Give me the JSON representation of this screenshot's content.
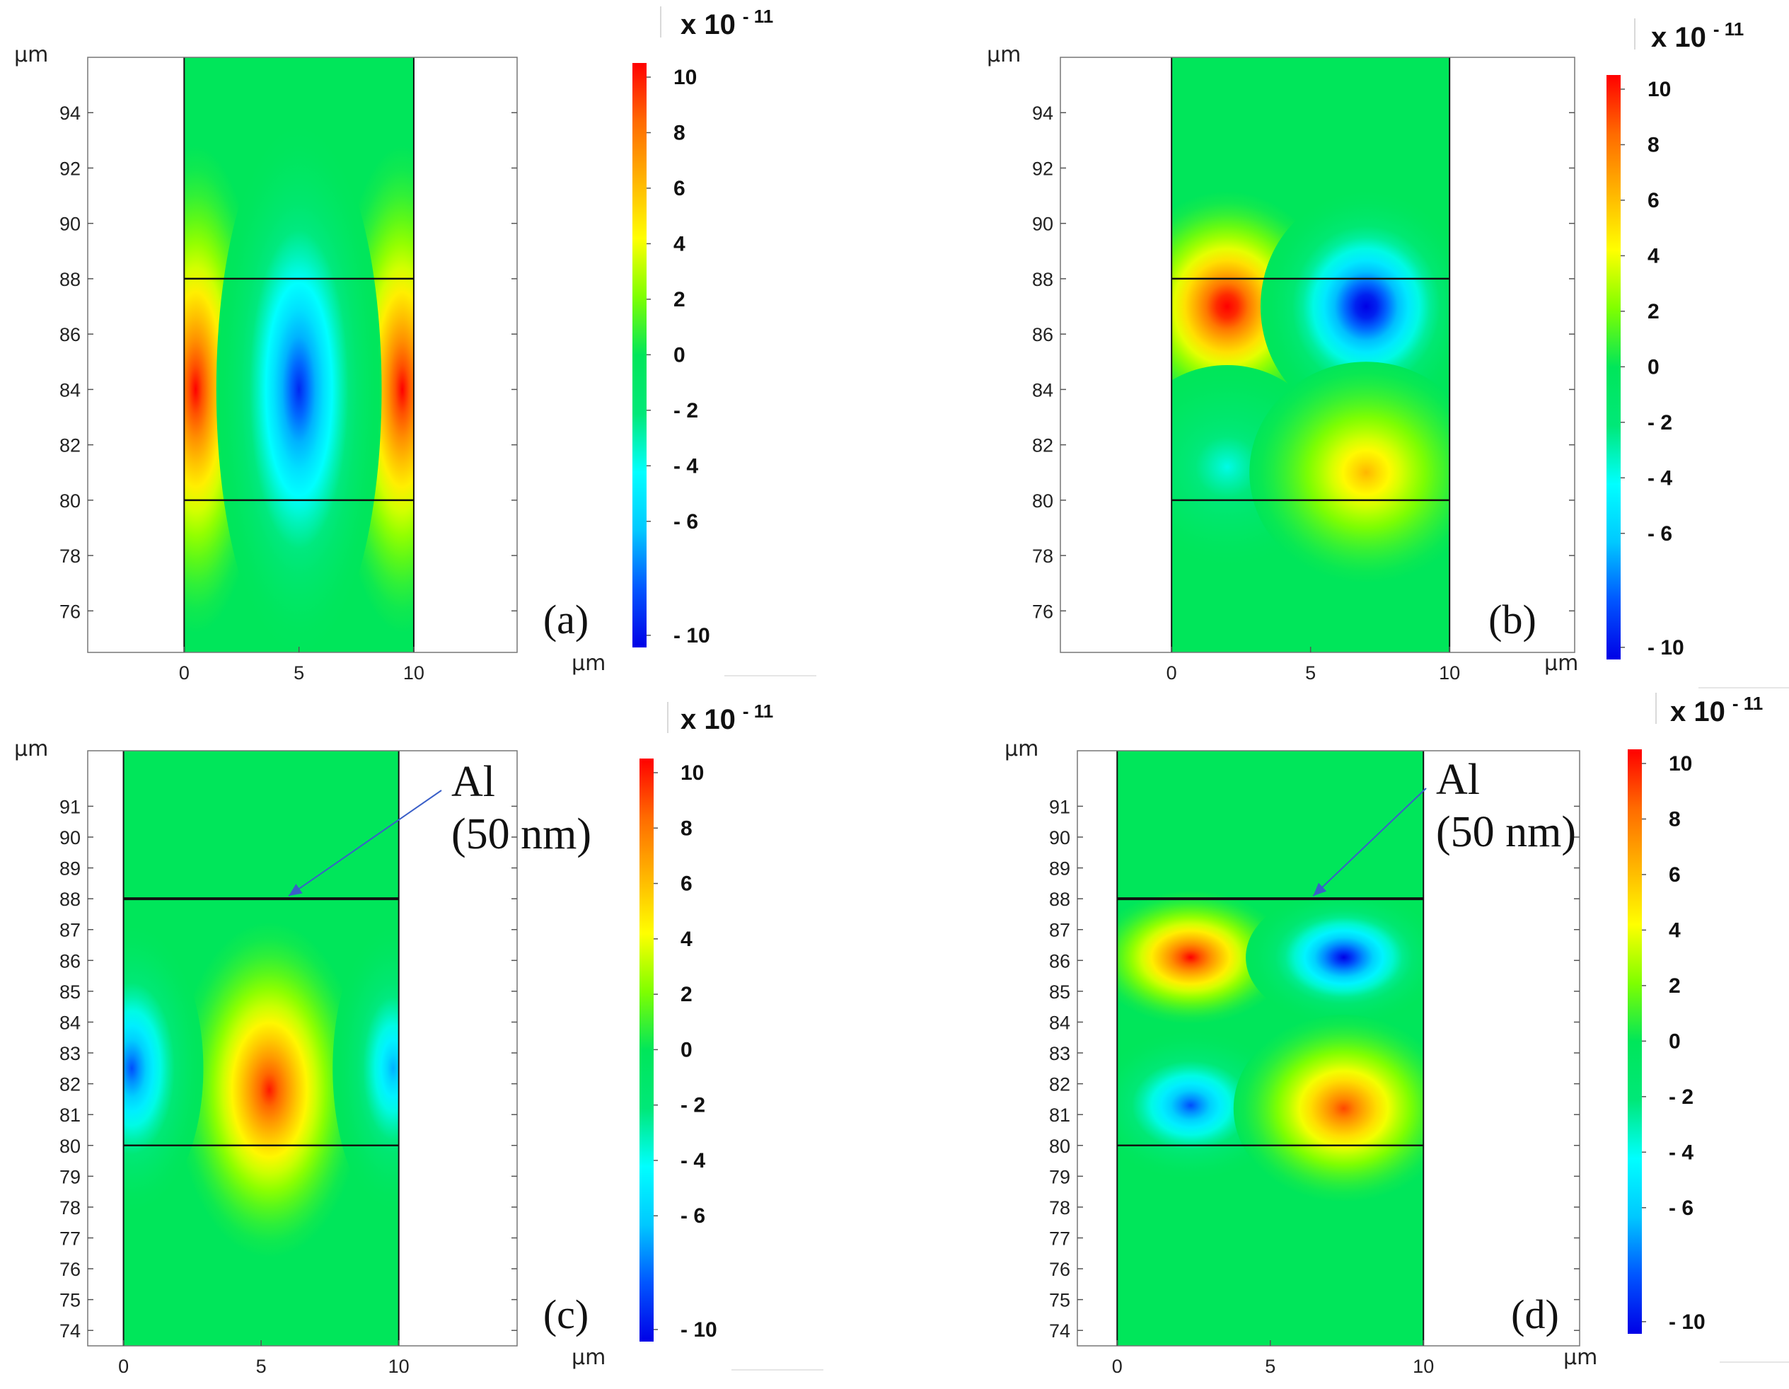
{
  "colormap": [
    "#0000e6",
    "#0055ff",
    "#00c8ff",
    "#00ffff",
    "#00e878",
    "#00e65a",
    "#7fff00",
    "#ffff00",
    "#ffb400",
    "#ff6a00",
    "#ff0000"
  ],
  "chart_data": [
    {
      "type": "heatmap",
      "panel_label": "(a)",
      "x_unit": "μm",
      "y_unit": "μm",
      "x_ticks": [
        "0",
        "5",
        "10"
      ],
      "y_ticks": [
        "76",
        "78",
        "80",
        "82",
        "84",
        "86",
        "88",
        "90",
        "92",
        "94"
      ],
      "xlim": [
        -4.2,
        14.5
      ],
      "ylim": [
        74.5,
        96
      ],
      "domain_x": [
        0,
        10
      ],
      "layer_lines_y": [
        80,
        88
      ],
      "colorbar": {
        "scale": "x 10",
        "exponent": "- 11",
        "ticks": [
          "10",
          "8",
          "6",
          "4",
          "2",
          "0",
          "- 2",
          "- 4",
          "- 6",
          "- 10"
        ],
        "range": [
          -11,
          11
        ]
      },
      "field": [
        {
          "x": 0.5,
          "y": 84,
          "sx": 1.5,
          "sy": 5.5,
          "value": 11,
          "sign": "positive"
        },
        {
          "x": 9.5,
          "y": 84,
          "sx": 1.5,
          "sy": 5.5,
          "value": 11,
          "sign": "positive"
        },
        {
          "x": 5,
          "y": 84,
          "sx": 1.8,
          "sy": 6,
          "value": -10,
          "sign": "negative"
        }
      ]
    },
    {
      "type": "heatmap",
      "panel_label": "(b)",
      "x_unit": "μm",
      "y_unit": "μm",
      "x_ticks": [
        "0",
        "5",
        "10"
      ],
      "y_ticks": [
        "76",
        "78",
        "80",
        "82",
        "84",
        "86",
        "88",
        "90",
        "92",
        "94"
      ],
      "xlim": [
        -4,
        14.5
      ],
      "ylim": [
        74.5,
        96
      ],
      "domain_x": [
        0,
        10
      ],
      "layer_lines_y": [
        80,
        88
      ],
      "colorbar": {
        "scale": "x 10",
        "exponent": "- 11",
        "ticks": [
          "10",
          "8",
          "6",
          "4",
          "2",
          "0",
          "- 2",
          "- 4",
          "- 6",
          "- 10"
        ],
        "range": [
          -11,
          11
        ]
      },
      "field": [
        {
          "x": 2,
          "y": 87,
          "sx": 1.9,
          "sy": 2.6,
          "value": 12,
          "sign": "positive"
        },
        {
          "x": 7,
          "y": 87,
          "sx": 1.9,
          "sy": 2.6,
          "value": -12,
          "sign": "negative"
        },
        {
          "x": 2,
          "y": 81.2,
          "sx": 1.9,
          "sy": 2.3,
          "value": -4,
          "sign": "negative"
        },
        {
          "x": 7,
          "y": 81,
          "sx": 2.1,
          "sy": 2.5,
          "value": 6.5,
          "sign": "positive"
        }
      ]
    },
    {
      "type": "heatmap",
      "panel_label": "(c)",
      "x_unit": "μm",
      "y_unit": "μm",
      "x_ticks": [
        "0",
        "5",
        "10"
      ],
      "y_ticks": [
        "74",
        "75",
        "76",
        "77",
        "78",
        "79",
        "80",
        "81",
        "82",
        "83",
        "84",
        "85",
        "86",
        "87",
        "88",
        "89",
        "90",
        "91"
      ],
      "xlim": [
        -1.3,
        14.3
      ],
      "ylim": [
        73.5,
        92.8
      ],
      "domain_x": [
        0,
        10
      ],
      "layer_lines_y": [
        80,
        88
      ],
      "annotation": {
        "line1": "Al",
        "line2": "(50 nm)",
        "arrow_to_x": 6,
        "arrow_to_y": 88
      },
      "colorbar": {
        "scale": "x 10",
        "exponent": "- 11",
        "ticks": [
          "10",
          "8",
          "6",
          "4",
          "2",
          "0",
          "- 2",
          "- 4",
          "- 6",
          "- 10"
        ],
        "range": [
          -11,
          11
        ]
      },
      "field": [
        {
          "x": 5.3,
          "y": 81.8,
          "sx": 1.7,
          "sy": 3.4,
          "value": 10.5,
          "sign": "positive"
        },
        {
          "x": 0.3,
          "y": 82.5,
          "sx": 1.3,
          "sy": 2.9,
          "value": -9,
          "sign": "negative"
        },
        {
          "x": 9.8,
          "y": 82.5,
          "sx": 1.1,
          "sy": 2.9,
          "value": -7,
          "sign": "negative"
        }
      ]
    },
    {
      "type": "heatmap",
      "panel_label": "(d)",
      "x_unit": "μm",
      "y_unit": "μm",
      "x_ticks": [
        "0",
        "5",
        "10"
      ],
      "y_ticks": [
        "74",
        "75",
        "76",
        "77",
        "78",
        "79",
        "80",
        "81",
        "82",
        "83",
        "84",
        "85",
        "86",
        "87",
        "88",
        "89",
        "90",
        "91"
      ],
      "xlim": [
        -1.3,
        15.1
      ],
      "ylim": [
        73.5,
        92.8
      ],
      "domain_x": [
        0,
        10
      ],
      "layer_lines_y": [
        80,
        88
      ],
      "annotation": {
        "line1": "Al",
        "line2": "(50 nm)",
        "arrow_to_x": 6.4,
        "arrow_to_y": 88
      },
      "colorbar": {
        "scale": "x 10",
        "exponent": "- 11",
        "ticks": [
          "10",
          "8",
          "6",
          "4",
          "2",
          "0",
          "- 2",
          "- 4",
          "- 6",
          "- 10"
        ],
        "range": [
          -11,
          11
        ]
      },
      "field": [
        {
          "x": 2.4,
          "y": 86.1,
          "sx": 1.6,
          "sy": 1.35,
          "value": 11,
          "sign": "positive"
        },
        {
          "x": 7.4,
          "y": 86.1,
          "sx": 1.6,
          "sy": 1.35,
          "value": -11,
          "sign": "negative"
        },
        {
          "x": 2.4,
          "y": 81.3,
          "sx": 1.6,
          "sy": 1.5,
          "value": -9,
          "sign": "negative"
        },
        {
          "x": 7.4,
          "y": 81.2,
          "sx": 1.8,
          "sy": 1.9,
          "value": 9.5,
          "sign": "positive"
        }
      ]
    }
  ]
}
